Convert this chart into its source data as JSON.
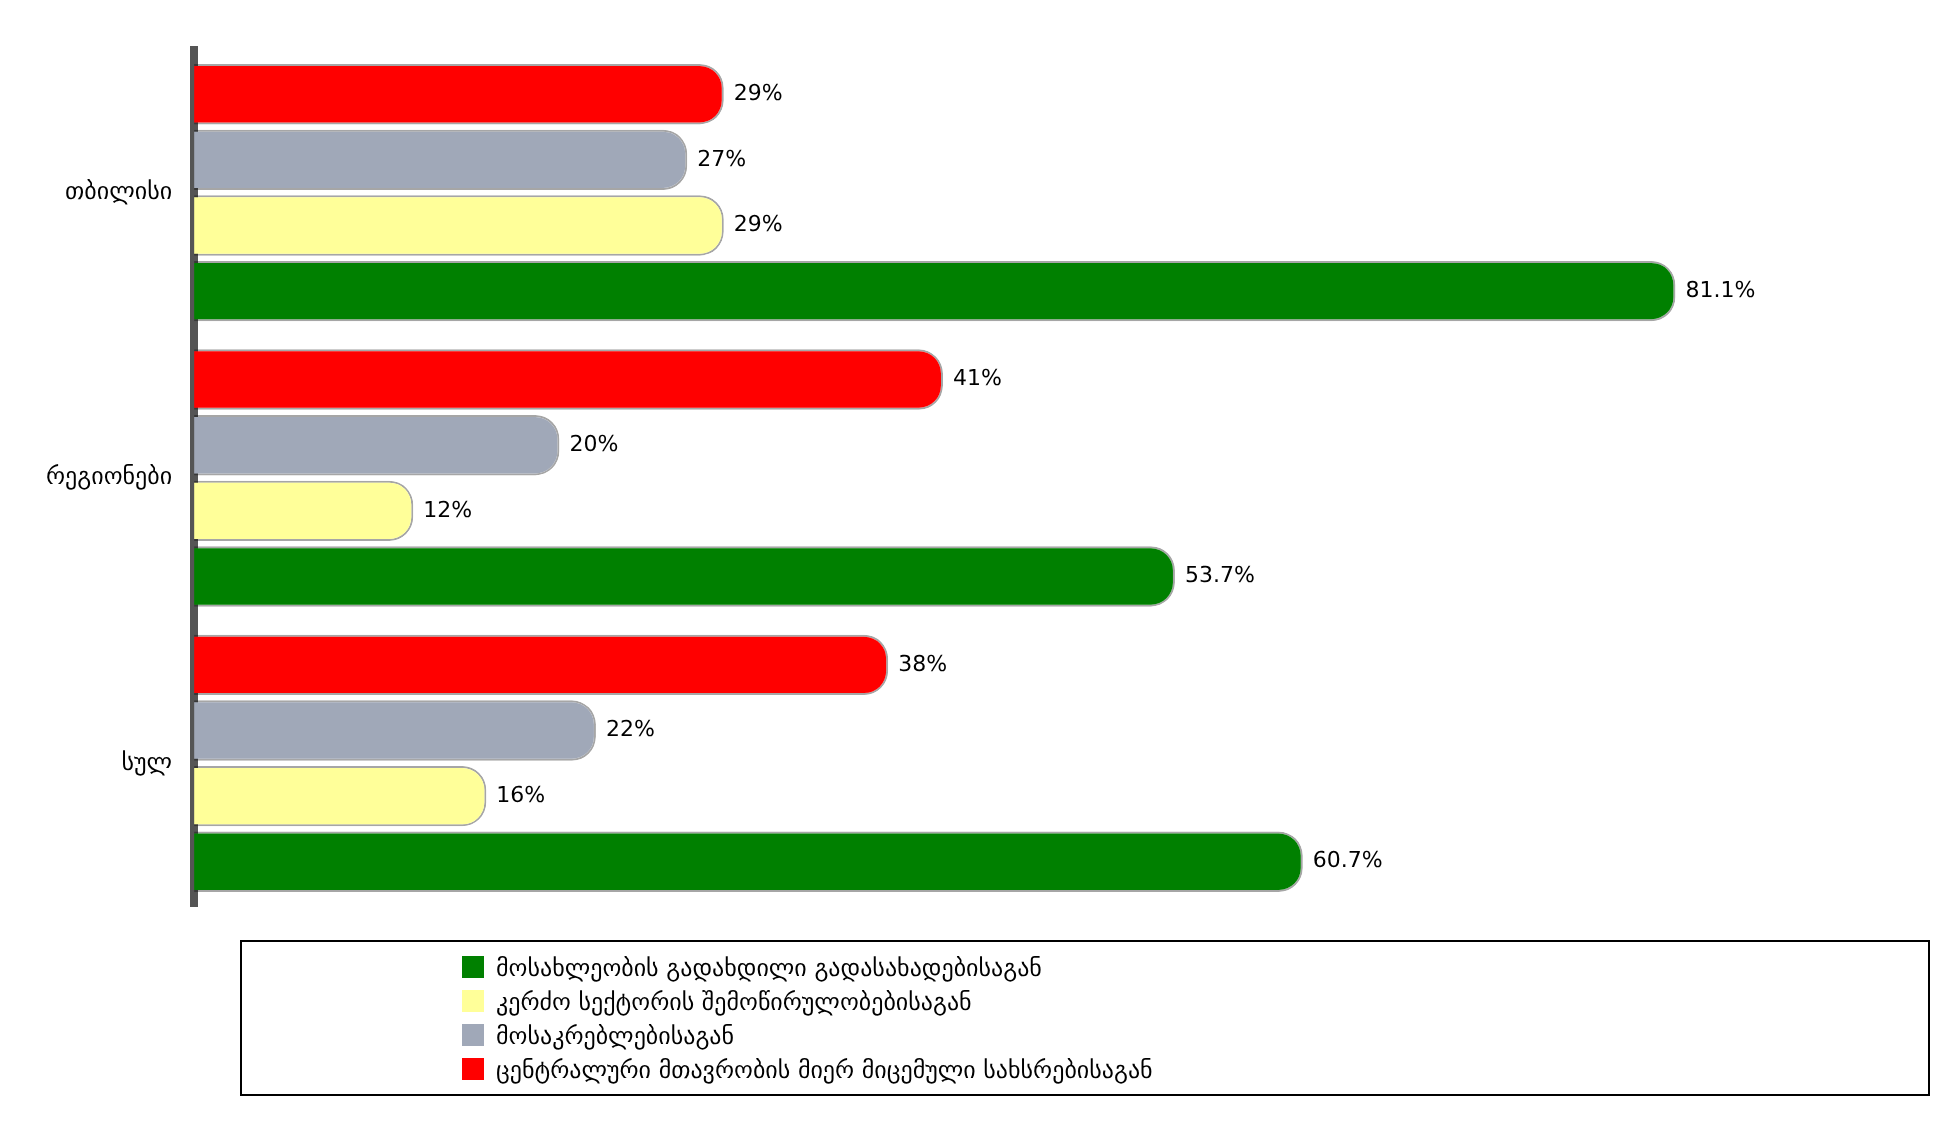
{
  "chart_data": {
    "type": "bar",
    "orientation": "horizontal",
    "categories": [
      "თბილისი",
      "რეგიონები",
      "სულ"
    ],
    "series": [
      {
        "name": "ცენტრალური მთავრობის მიერ მიცემული სახსრებისაგან",
        "color": "#ff0000",
        "values": [
          29,
          41,
          38
        ],
        "value_labels": [
          "29%",
          "41%",
          "38%"
        ]
      },
      {
        "name": "მოსაკრებლებისაგან",
        "color": "#a0a8b8",
        "values": [
          27,
          20,
          22
        ],
        "value_labels": [
          "27%",
          "20%",
          "22%"
        ]
      },
      {
        "name": "კერძო სექტორის შემოწირულობებისაგან",
        "color": "#ffff99",
        "values": [
          29,
          12,
          16
        ],
        "value_labels": [
          "29%",
          "12%",
          "16%"
        ]
      },
      {
        "name": "მოსახლეობის გადახდილი გადასახადებისაგან",
        "color": "#008000",
        "values": [
          81.1,
          53.7,
          60.7
        ],
        "value_labels": [
          "81.1%",
          "53.7%",
          "60.7%"
        ]
      }
    ],
    "tick_labels": "y",
    "grid": false,
    "legend": "bottom"
  }
}
